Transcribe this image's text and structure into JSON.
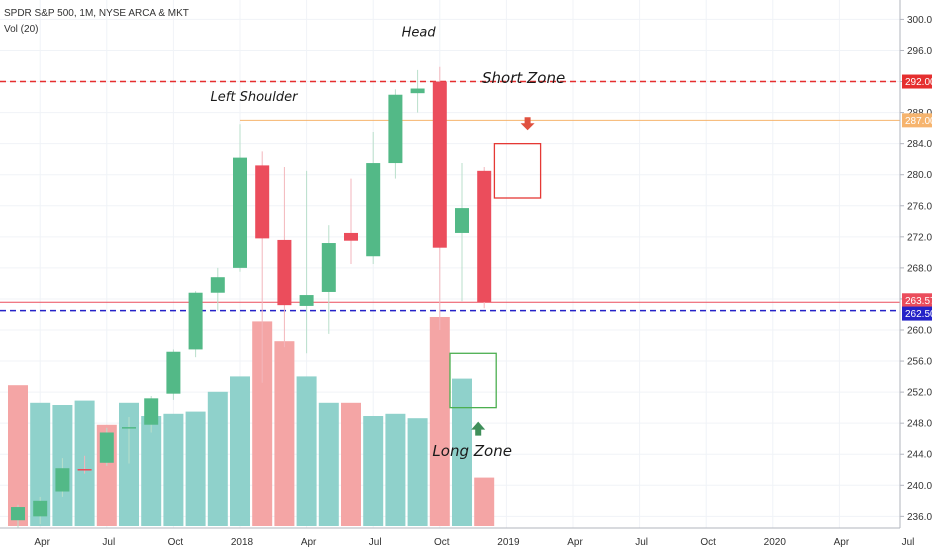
{
  "symbol": {
    "title": "SPDR S&P 500, 1M, NYSE ARCA & MKT",
    "indicator": "Vol (20)"
  },
  "colors": {
    "up": "#53b987",
    "down": "#eb4d5c",
    "vol_up": "#8fd1cb",
    "vol_down": "#f4a5a5",
    "resistance_line": "#e52f2f",
    "support_line": "#2523c8",
    "short_line": "#f6b46e",
    "short_zone": "#e53935",
    "long_zone": "#4caf50",
    "short_arrow": "#e0513f",
    "long_arrow": "#3f8f5a"
  },
  "chart_data": {
    "type": "candlestick",
    "timeframe": "1M",
    "ylim": [
      234.5,
      302.5
    ],
    "x_axis_labels": [
      "Apr",
      "Jul",
      "Oct",
      "2018",
      "Apr",
      "Jul",
      "Oct",
      "2019",
      "Apr",
      "Jul",
      "Oct",
      "2020",
      "Apr",
      "Jul"
    ],
    "y_ticks": [
      236,
      240,
      244,
      248,
      252,
      256,
      260,
      264,
      268,
      272,
      276,
      280,
      284,
      288,
      292,
      296,
      300
    ],
    "candles": [
      {
        "month": "2017-03",
        "open": 235.5,
        "high": 237.5,
        "low": 234.5,
        "close": 237.2
      },
      {
        "month": "2017-04",
        "open": 236.0,
        "high": 238.5,
        "low": 235.0,
        "close": 238.0
      },
      {
        "month": "2017-05",
        "open": 239.2,
        "high": 243.5,
        "low": 238.5,
        "close": 242.2
      },
      {
        "month": "2017-06",
        "open": 242.1,
        "high": 243.8,
        "low": 241.5,
        "close": 241.9
      },
      {
        "month": "2017-07",
        "open": 242.9,
        "high": 247.4,
        "low": 242.5,
        "close": 246.8
      },
      {
        "month": "2017-08",
        "open": 247.3,
        "high": 248.8,
        "low": 242.8,
        "close": 247.5
      },
      {
        "month": "2017-09",
        "open": 247.8,
        "high": 251.5,
        "low": 246.8,
        "close": 251.2
      },
      {
        "month": "2017-10",
        "open": 251.8,
        "high": 257.5,
        "low": 251.0,
        "close": 257.2
      },
      {
        "month": "2017-11",
        "open": 257.5,
        "high": 265.0,
        "low": 256.5,
        "close": 264.8
      },
      {
        "month": "2017-12",
        "open": 264.8,
        "high": 268.0,
        "low": 262.5,
        "close": 266.8
      },
      {
        "month": "2018-01",
        "open": 268.0,
        "high": 286.5,
        "low": 267.5,
        "close": 282.2
      },
      {
        "month": "2018-02",
        "open": 281.2,
        "high": 283.0,
        "low": 253.2,
        "close": 271.8
      },
      {
        "month": "2018-03",
        "open": 271.6,
        "high": 281.0,
        "low": 257.8,
        "close": 263.2
      },
      {
        "month": "2018-04",
        "open": 263.1,
        "high": 280.5,
        "low": 257.0,
        "close": 264.5
      },
      {
        "month": "2018-05",
        "open": 264.9,
        "high": 273.5,
        "low": 259.5,
        "close": 271.2
      },
      {
        "month": "2018-06",
        "open": 272.5,
        "high": 279.5,
        "low": 268.5,
        "close": 271.5
      },
      {
        "month": "2018-07",
        "open": 269.5,
        "high": 285.5,
        "low": 268.5,
        "close": 281.5
      },
      {
        "month": "2018-08",
        "open": 281.5,
        "high": 291.0,
        "low": 279.5,
        "close": 290.3
      },
      {
        "month": "2018-09",
        "open": 290.5,
        "high": 293.5,
        "low": 288.0,
        "close": 291.1
      },
      {
        "month": "2018-10",
        "open": 292.0,
        "high": 293.9,
        "low": 260.0,
        "close": 270.6
      },
      {
        "month": "2018-11",
        "open": 272.5,
        "high": 281.5,
        "low": 263.7,
        "close": 275.7
      },
      {
        "month": "2018-12",
        "open": 280.5,
        "high": 281.0,
        "low": 262.8,
        "close": 263.6
      }
    ],
    "volume_relative": [
      0.64,
      0.56,
      0.55,
      0.57,
      0.46,
      0.56,
      0.5,
      0.51,
      0.52,
      0.61,
      0.68,
      0.93,
      0.84,
      0.68,
      0.56,
      0.56,
      0.5,
      0.51,
      0.49,
      0.95,
      0.67,
      0.22
    ],
    "volume_direction": [
      "down",
      "up",
      "up",
      "up",
      "down",
      "up",
      "up",
      "up",
      "up",
      "up",
      "up",
      "down",
      "down",
      "up",
      "up",
      "down",
      "up",
      "up",
      "up",
      "down",
      "up",
      "down"
    ],
    "horizontal_levels": [
      {
        "value": 292.0,
        "label": "292.00",
        "style": "dashed",
        "color_key": "resistance_line"
      },
      {
        "value": 287.0,
        "label": "287.00",
        "style": "solid",
        "color_key": "short_line"
      },
      {
        "value": 263.57,
        "label": "263.57",
        "style": "solid",
        "color_key": "down"
      },
      {
        "value": 262.5,
        "label": "262.50",
        "style": "dashed",
        "color_key": "support_line"
      }
    ],
    "zones": [
      {
        "name": "Short Zone",
        "from_month": "2019-01",
        "to_month": "2019-02",
        "low": 277.0,
        "high": 284.0,
        "color_key": "short_zone"
      },
      {
        "name": "Long Zone",
        "from_month": "2018-11",
        "to_month": "2018-12",
        "low": 250.0,
        "high": 257.0,
        "color_key": "long_zone"
      }
    ],
    "annotations": [
      {
        "text": "Left Shoulder",
        "month": "2018-01",
        "value": 289.5
      },
      {
        "text": "Head",
        "month": "2018-09",
        "value": 297.8
      },
      {
        "text": "Short Zone",
        "month": "2019-02",
        "value": 291.8
      },
      {
        "text": "Long Zone",
        "month": "2018-12",
        "value": 243.8
      }
    ]
  }
}
